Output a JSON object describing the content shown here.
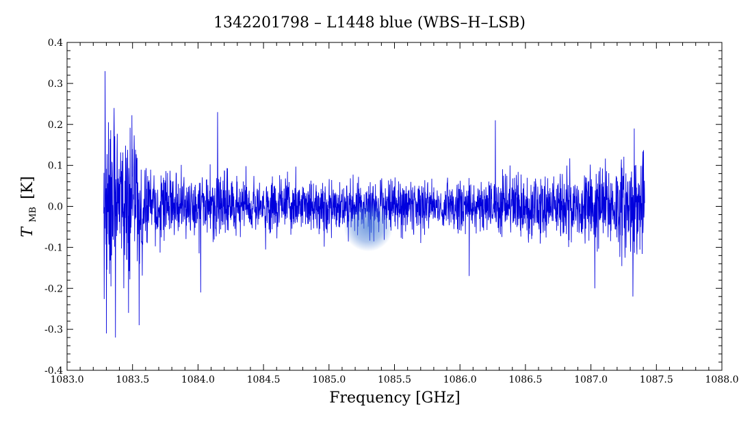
{
  "chart_data": {
    "type": "line",
    "title": "1342201798 – L1448 blue (WBS–H–LSB)",
    "xlabel": "Frequency [GHz]",
    "ylabel_main": "T",
    "ylabel_sub": "MB",
    "ylabel_unit": "[K]",
    "xlim": [
      1083.0,
      1088.0
    ],
    "ylim": [
      -0.4,
      0.4
    ],
    "x_ticks": [
      1083.0,
      1083.5,
      1084.0,
      1084.5,
      1085.0,
      1085.5,
      1086.0,
      1086.5,
      1087.0,
      1087.5,
      1088.0
    ],
    "x_tick_labels": [
      "1083.0",
      "1083.5",
      "1084.0",
      "1084.5",
      "1085.0",
      "1085.5",
      "1086.0",
      "1086.5",
      "1087.0",
      "1087.5",
      "1088.0"
    ],
    "y_ticks": [
      -0.4,
      -0.3,
      -0.2,
      -0.1,
      0.0,
      0.1,
      0.2,
      0.3,
      0.4
    ],
    "y_tick_labels": [
      "-0.4",
      "-0.3",
      "-0.2",
      "-0.1",
      "0.0",
      "0.1",
      "0.2",
      "0.3",
      "0.4"
    ],
    "grid": false,
    "series": [
      {
        "color": "#0000dd",
        "x_start": 1083.28,
        "x_end": 1087.41,
        "n_points": 2400,
        "baseline": 0.0,
        "noise_rms_edges": 0.09,
        "noise_rms_center": 0.045,
        "peaks": [
          {
            "x": 1083.29,
            "y": 0.33
          },
          {
            "x": 1083.36,
            "y": 0.24
          },
          {
            "x": 1084.15,
            "y": 0.23
          },
          {
            "x": 1086.27,
            "y": 0.21
          },
          {
            "x": 1087.33,
            "y": 0.19
          }
        ],
        "troughs": [
          {
            "x": 1083.3,
            "y": -0.31
          },
          {
            "x": 1083.37,
            "y": -0.32
          },
          {
            "x": 1083.47,
            "y": -0.26
          },
          {
            "x": 1083.55,
            "y": -0.29
          },
          {
            "x": 1084.02,
            "y": -0.21
          },
          {
            "x": 1086.07,
            "y": -0.17
          },
          {
            "x": 1087.03,
            "y": -0.2
          },
          {
            "x": 1087.32,
            "y": -0.22
          }
        ]
      }
    ],
    "highlight": {
      "x": 1085.3,
      "y": -0.05,
      "color": "#4a7fd6"
    }
  }
}
